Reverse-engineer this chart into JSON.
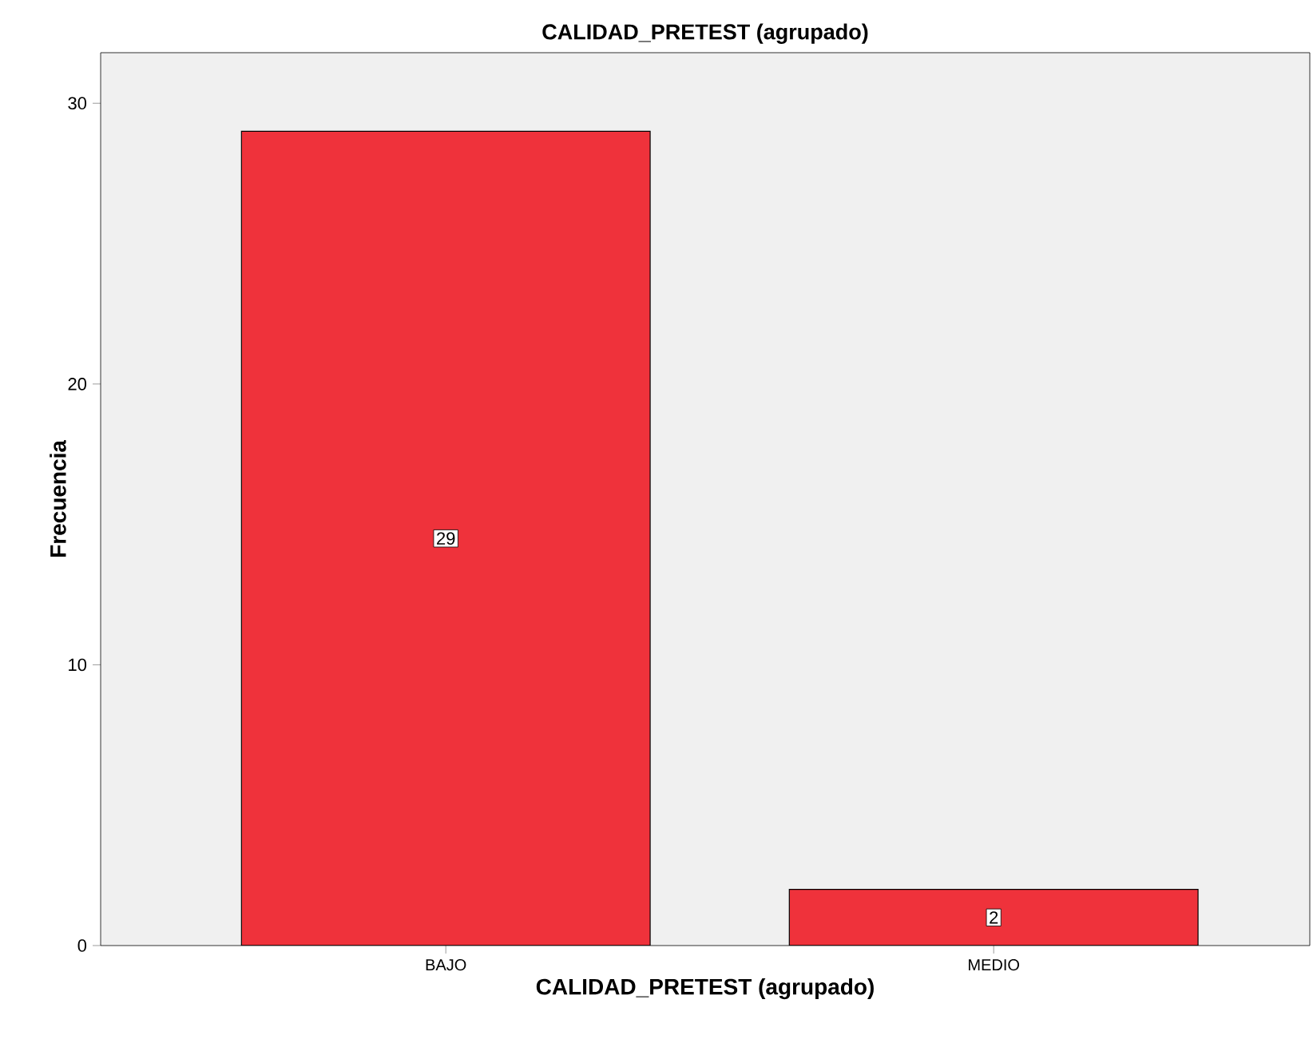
{
  "chart_data": {
    "type": "bar",
    "title": "CALIDAD_PRETEST (agrupado)",
    "xlabel": "CALIDAD_PRETEST (agrupado)",
    "ylabel": "Frecuencia",
    "categories": [
      "BAJO",
      "MEDIO"
    ],
    "values": [
      29,
      2
    ],
    "color": "#ef323b",
    "ylim": [
      0,
      31.8
    ],
    "yticks": [
      0,
      10,
      20,
      30
    ],
    "data_labels": true,
    "grid": false
  }
}
